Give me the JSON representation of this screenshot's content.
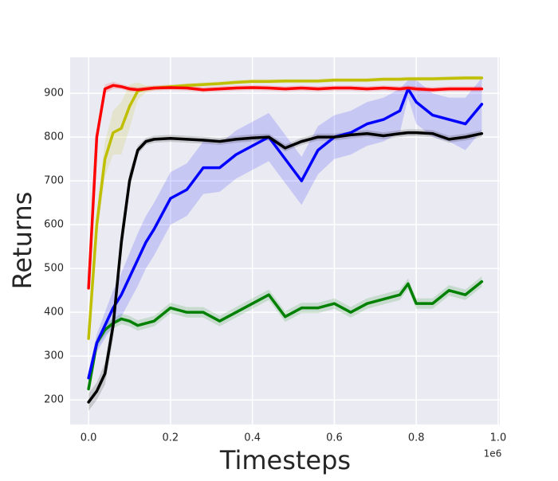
{
  "chart_data": {
    "type": "line",
    "x_label": "Timesteps",
    "y_label": "Returns",
    "x_offset_label": "1e6",
    "x": [
      0,
      0.02,
      0.04,
      0.06,
      0.08,
      0.1,
      0.12,
      0.14,
      0.16,
      0.2,
      0.24,
      0.28,
      0.32,
      0.36,
      0.4,
      0.44,
      0.48,
      0.52,
      0.56,
      0.6,
      0.64,
      0.68,
      0.72,
      0.76,
      0.78,
      0.8,
      0.84,
      0.88,
      0.92,
      0.96
    ],
    "series": [
      {
        "color": "#008000",
        "values": [
          225,
          330,
          360,
          375,
          385,
          380,
          370,
          375,
          380,
          410,
          400,
          400,
          380,
          400,
          420,
          440,
          390,
          410,
          410,
          420,
          400,
          420,
          430,
          440,
          465,
          420,
          420,
          450,
          440,
          470
        ],
        "band": [
          10,
          12,
          12,
          12,
          12,
          12,
          12,
          12,
          12,
          12,
          12,
          12,
          12,
          12,
          12,
          12,
          12,
          12,
          12,
          12,
          12,
          12,
          12,
          12,
          12,
          12,
          12,
          12,
          12,
          12
        ]
      },
      {
        "color": "#0000ff",
        "values": [
          250,
          330,
          370,
          410,
          440,
          480,
          520,
          560,
          590,
          660,
          680,
          730,
          730,
          760,
          780,
          800,
          750,
          700,
          770,
          800,
          810,
          830,
          840,
          860,
          910,
          880,
          850,
          840,
          830,
          875
        ],
        "band": [
          15,
          20,
          30,
          40,
          50,
          55,
          60,
          60,
          60,
          60,
          60,
          60,
          55,
          55,
          55,
          55,
          55,
          55,
          55,
          50,
          50,
          50,
          50,
          50,
          20,
          50,
          50,
          50,
          60,
          60
        ]
      },
      {
        "color": "#000000",
        "values": [
          195,
          220,
          260,
          370,
          560,
          700,
          770,
          790,
          795,
          797,
          795,
          793,
          790,
          795,
          798,
          800,
          775,
          790,
          800,
          800,
          805,
          808,
          803,
          808,
          810,
          810,
          808,
          795,
          800,
          808
        ],
        "band": [
          20,
          20,
          25,
          30,
          30,
          20,
          10,
          8,
          8,
          8,
          8,
          8,
          8,
          8,
          8,
          8,
          8,
          8,
          8,
          8,
          8,
          8,
          8,
          8,
          8,
          8,
          8,
          8,
          8,
          8
        ]
      },
      {
        "color": "#bfbf00",
        "values": [
          340,
          600,
          750,
          810,
          820,
          870,
          905,
          910,
          912,
          915,
          918,
          920,
          922,
          925,
          927,
          927,
          928,
          928,
          928,
          930,
          930,
          930,
          932,
          932,
          933,
          933,
          933,
          934,
          935,
          935
        ],
        "band": [
          10,
          30,
          40,
          50,
          60,
          50,
          20,
          8,
          5,
          5,
          5,
          5,
          5,
          5,
          5,
          5,
          5,
          5,
          5,
          5,
          5,
          5,
          5,
          5,
          5,
          5,
          5,
          5,
          5,
          5
        ]
      },
      {
        "color": "#ff0000",
        "values": [
          455,
          800,
          910,
          918,
          915,
          910,
          908,
          910,
          912,
          913,
          912,
          908,
          910,
          912,
          913,
          912,
          910,
          912,
          910,
          912,
          912,
          910,
          912,
          910,
          912,
          910,
          908,
          910,
          910,
          910
        ],
        "band": [
          10,
          15,
          10,
          8,
          6,
          6,
          6,
          6,
          6,
          6,
          6,
          6,
          6,
          6,
          6,
          6,
          6,
          6,
          6,
          6,
          6,
          6,
          6,
          6,
          6,
          6,
          6,
          6,
          6,
          6
        ]
      }
    ],
    "xlim": [
      -0.045,
      1.004
    ],
    "ylim": [
      144,
      982
    ],
    "xticks": [
      {
        "value": 0,
        "label": "0.0"
      },
      0.2,
      0.4,
      0.6,
      0.8,
      {
        "value": 1,
        "label": "1.0"
      }
    ],
    "yticks": [
      200,
      300,
      400,
      500,
      600,
      700,
      800,
      900
    ],
    "grid": true,
    "background": "#eaeaf2",
    "line_width": 3.5,
    "band_opacity": 0.15
  }
}
